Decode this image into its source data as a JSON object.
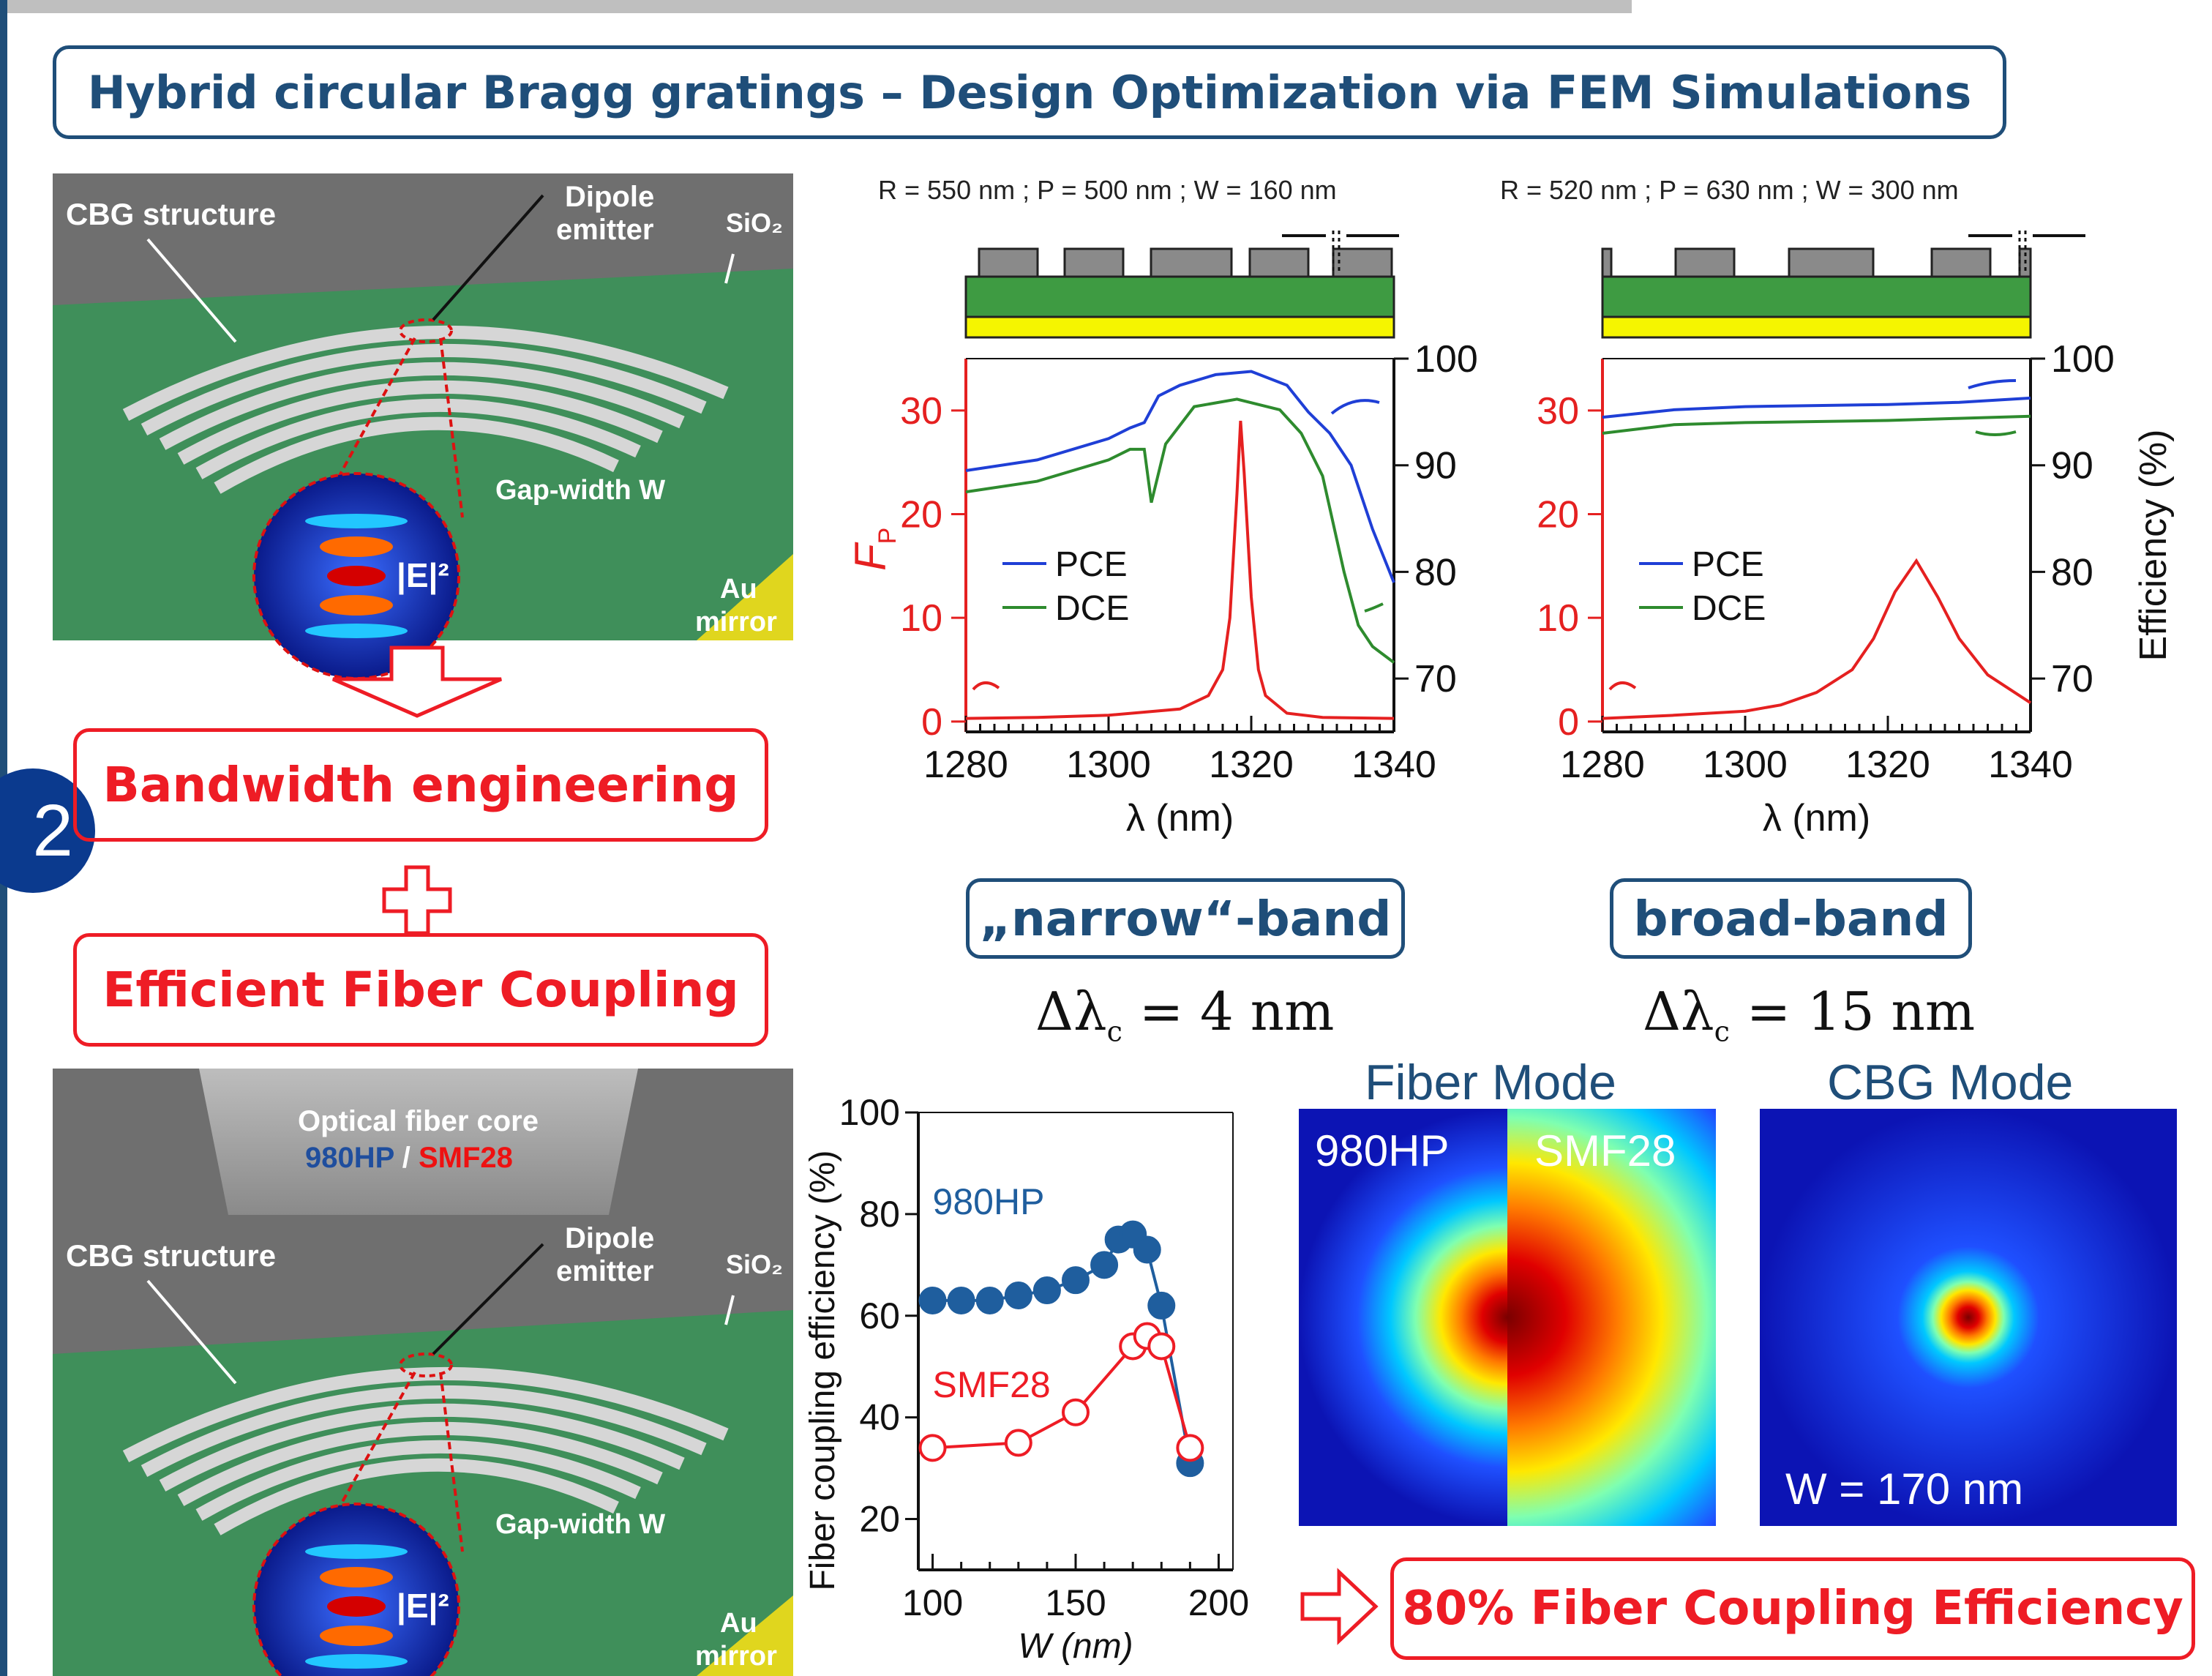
{
  "title": "Hybrid circular Bragg gratings – Design Optimization via FEM Simulations",
  "badge": "2",
  "render_panel_top": {
    "cbg_label": "CBG structure",
    "dipole_label_1": "Dipole",
    "dipole_label_2": "emitter",
    "sio2_label": "SiO₂",
    "field_label": "|E|²",
    "gap_label": "Gap-width W",
    "mirror_label_1": "Au",
    "mirror_label_2": "mirror"
  },
  "render_panel_bottom": {
    "fiber_core_label": "Optical fiber core",
    "fiber_types_a": "980HP",
    "fiber_types_sep": " / ",
    "fiber_types_b": "SMF28",
    "cbg_label": "CBG structure",
    "dipole_label_1": "Dipole",
    "dipole_label_2": "emitter",
    "sio2_label": "SiO₂",
    "field_label": "|E|²",
    "gap_label": "Gap-width W",
    "mirror_label_1": "Au",
    "mirror_label_2": "mirror"
  },
  "boxes": {
    "bandwidth": "Bandwidth engineering",
    "fiber_coupling": "Efficient Fiber Coupling",
    "result": "80% Fiber Coupling Efficiency",
    "narrow": "„narrow“-band",
    "broad": "broad-band"
  },
  "deltas": {
    "narrow_prefix": "Δλ",
    "narrow_sub": "c",
    "narrow_value": " = 4 nm",
    "broad_prefix": "Δλ",
    "broad_sub": "c",
    "broad_value": " = 15 nm"
  },
  "mode_titles": {
    "fiber": "Fiber Mode",
    "cbg": "CBG Mode"
  },
  "mode_labels": {
    "left": "980HP",
    "right": "SMF28",
    "cbg_w": "W = 170 nm"
  },
  "colors": {
    "navy": "#1f4e79",
    "red": "#ee1c25",
    "blue_line": "#1f3fd6",
    "green_line": "#2e8b2e",
    "red_line": "#e52020",
    "substrate": "#3e9b42",
    "gold": "#f5f500"
  },
  "chart_data": [
    {
      "type": "line",
      "header": {
        "R": "550 nm",
        "P": "500 nm",
        "W": "160 nm"
      },
      "xlabel": "λ (nm)",
      "ylabel_left": "F_P",
      "ylabel_right": "",
      "x_ticks": [
        1280,
        1300,
        1320,
        1340
      ],
      "y_left_ticks": [
        0,
        10,
        20,
        30
      ],
      "y_right_ticks": [
        70,
        80,
        90,
        100
      ],
      "xlim": [
        1280,
        1340
      ],
      "ylim_left": [
        -1,
        35
      ],
      "ylim_right": [
        65,
        100
      ],
      "legend": [
        "PCE",
        "DCE"
      ],
      "series": [
        {
          "name": "PCE",
          "axis": "right",
          "x": [
            1280,
            1290,
            1300,
            1303,
            1305,
            1307,
            1310,
            1315,
            1320,
            1325,
            1328,
            1331,
            1334,
            1337,
            1340
          ],
          "y": [
            89.5,
            90.5,
            92.5,
            93.5,
            94,
            96.5,
            97.5,
            98.5,
            98.8,
            97.5,
            95,
            93,
            90,
            84,
            79
          ]
        },
        {
          "name": "DCE",
          "axis": "right",
          "x": [
            1280,
            1290,
            1300,
            1303,
            1305,
            1306,
            1308,
            1312,
            1318,
            1324,
            1327,
            1330,
            1333,
            1335,
            1337,
            1340
          ],
          "y": [
            87.5,
            88.5,
            90.5,
            91.5,
            91.5,
            86.5,
            92,
            95.5,
            96.2,
            95.2,
            93,
            89,
            80,
            75,
            73,
            71.5
          ]
        },
        {
          "name": "F_P",
          "axis": "left",
          "x": [
            1280,
            1290,
            1300,
            1310,
            1314,
            1316,
            1317,
            1318,
            1318.5,
            1319,
            1320,
            1321,
            1322,
            1325,
            1330,
            1340
          ],
          "y": [
            0.3,
            0.4,
            0.6,
            1.2,
            2.5,
            5,
            10,
            22,
            29,
            24,
            12,
            5,
            2.5,
            0.8,
            0.4,
            0.3
          ]
        }
      ]
    },
    {
      "type": "line",
      "header": {
        "R": "520 nm",
        "P": "630 nm",
        "W": "300 nm"
      },
      "xlabel": "λ (nm)",
      "ylabel_left": "",
      "ylabel_right": "Efficiency (%)",
      "x_ticks": [
        1280,
        1300,
        1320,
        1340
      ],
      "y_left_ticks": [
        0,
        10,
        20,
        30
      ],
      "y_right_ticks": [
        70,
        80,
        90,
        100
      ],
      "xlim": [
        1280,
        1340
      ],
      "ylim_left": [
        -1,
        35
      ],
      "ylim_right": [
        65,
        100
      ],
      "legend": [
        "PCE",
        "DCE"
      ],
      "series": [
        {
          "name": "PCE",
          "axis": "right",
          "x": [
            1280,
            1290,
            1300,
            1310,
            1320,
            1330,
            1340
          ],
          "y": [
            94.5,
            95.2,
            95.5,
            95.6,
            95.7,
            95.9,
            96.3
          ]
        },
        {
          "name": "DCE",
          "axis": "right",
          "x": [
            1280,
            1290,
            1300,
            1310,
            1320,
            1330,
            1340
          ],
          "y": [
            93,
            93.8,
            94,
            94.1,
            94.2,
            94.4,
            94.6
          ]
        },
        {
          "name": "F_P",
          "axis": "left",
          "x": [
            1280,
            1290,
            1300,
            1305,
            1310,
            1315,
            1318,
            1321,
            1324,
            1327,
            1330,
            1334,
            1340
          ],
          "y": [
            0.3,
            0.6,
            1,
            1.6,
            2.8,
            5,
            8,
            12.5,
            15.5,
            12,
            8,
            4.5,
            1.8
          ]
        }
      ]
    },
    {
      "type": "scatter",
      "xlabel": "W (nm)",
      "ylabel": "Fiber coupling efficiency (%)",
      "x_ticks": [
        100,
        150,
        200
      ],
      "y_ticks": [
        20,
        40,
        60,
        80,
        100
      ],
      "xlim": [
        95,
        205
      ],
      "ylim": [
        10,
        100
      ],
      "series": [
        {
          "name": "980HP",
          "x": [
            100,
            110,
            120,
            130,
            140,
            150,
            160,
            165,
            170,
            175,
            180,
            190
          ],
          "y": [
            63,
            63,
            63,
            64,
            65,
            67,
            70,
            75,
            76,
            73,
            62,
            31
          ]
        },
        {
          "name": "SMF28",
          "x": [
            100,
            130,
            150,
            170,
            175,
            180,
            190
          ],
          "y": [
            34,
            35,
            41,
            54,
            56,
            54,
            34
          ]
        }
      ]
    }
  ]
}
